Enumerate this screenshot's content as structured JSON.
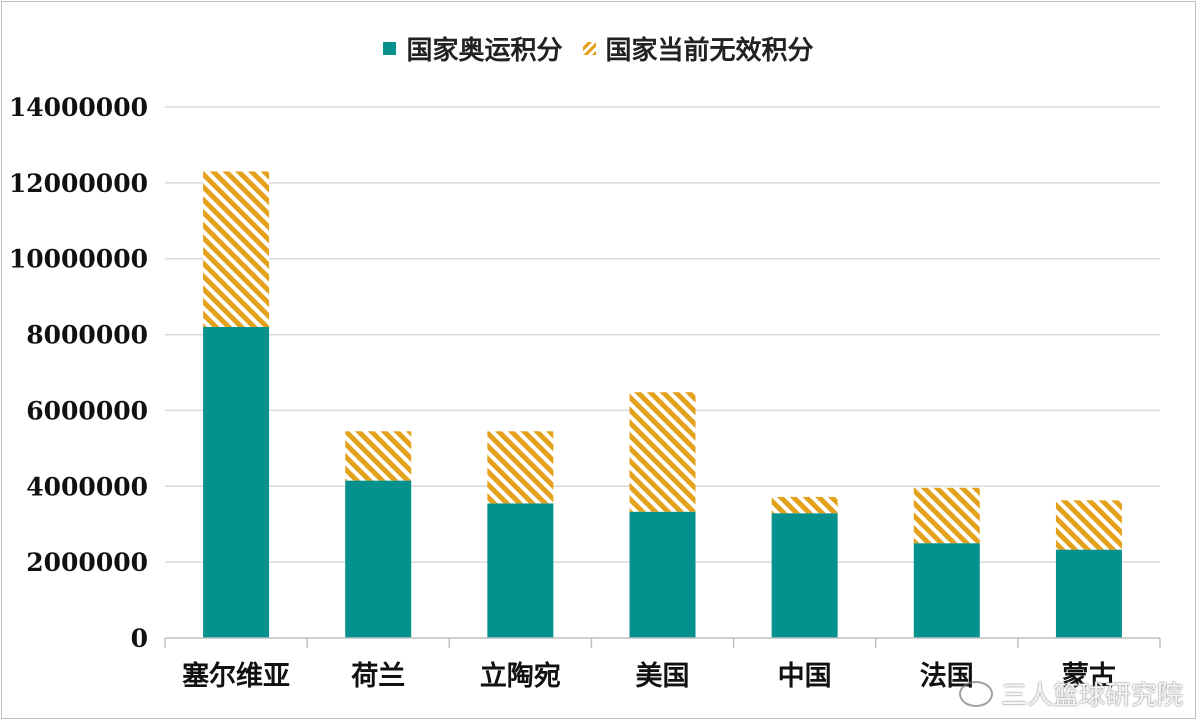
{
  "chart_data": {
    "type": "bar",
    "stacked": true,
    "categories": [
      "塞尔维亚",
      "荷兰",
      "立陶宛",
      "美国",
      "中国",
      "法国",
      "蒙古"
    ],
    "series": [
      {
        "name": "国家奥运积分",
        "color": "#05918e",
        "pattern": "solid",
        "values": [
          8200000,
          4150000,
          3550000,
          3330000,
          3290000,
          2500000,
          2330000
        ]
      },
      {
        "name": "国家当前无效积分",
        "color": "#e4a11b",
        "pattern": "hatched",
        "values": [
          4100000,
          1300000,
          1900000,
          3150000,
          430000,
          1460000,
          1300000
        ]
      }
    ],
    "yticks": [
      "0",
      "2000000",
      "4000000",
      "6000000",
      "8000000",
      "10000000",
      "12000000",
      "14000000"
    ],
    "ylim": [
      0,
      14000000
    ],
    "grid": true,
    "legend_position": "top-center",
    "title": "",
    "xlabel": "",
    "ylabel": ""
  },
  "watermark": {
    "text": "三人篮球研究院",
    "icon": "weibo-icon"
  }
}
